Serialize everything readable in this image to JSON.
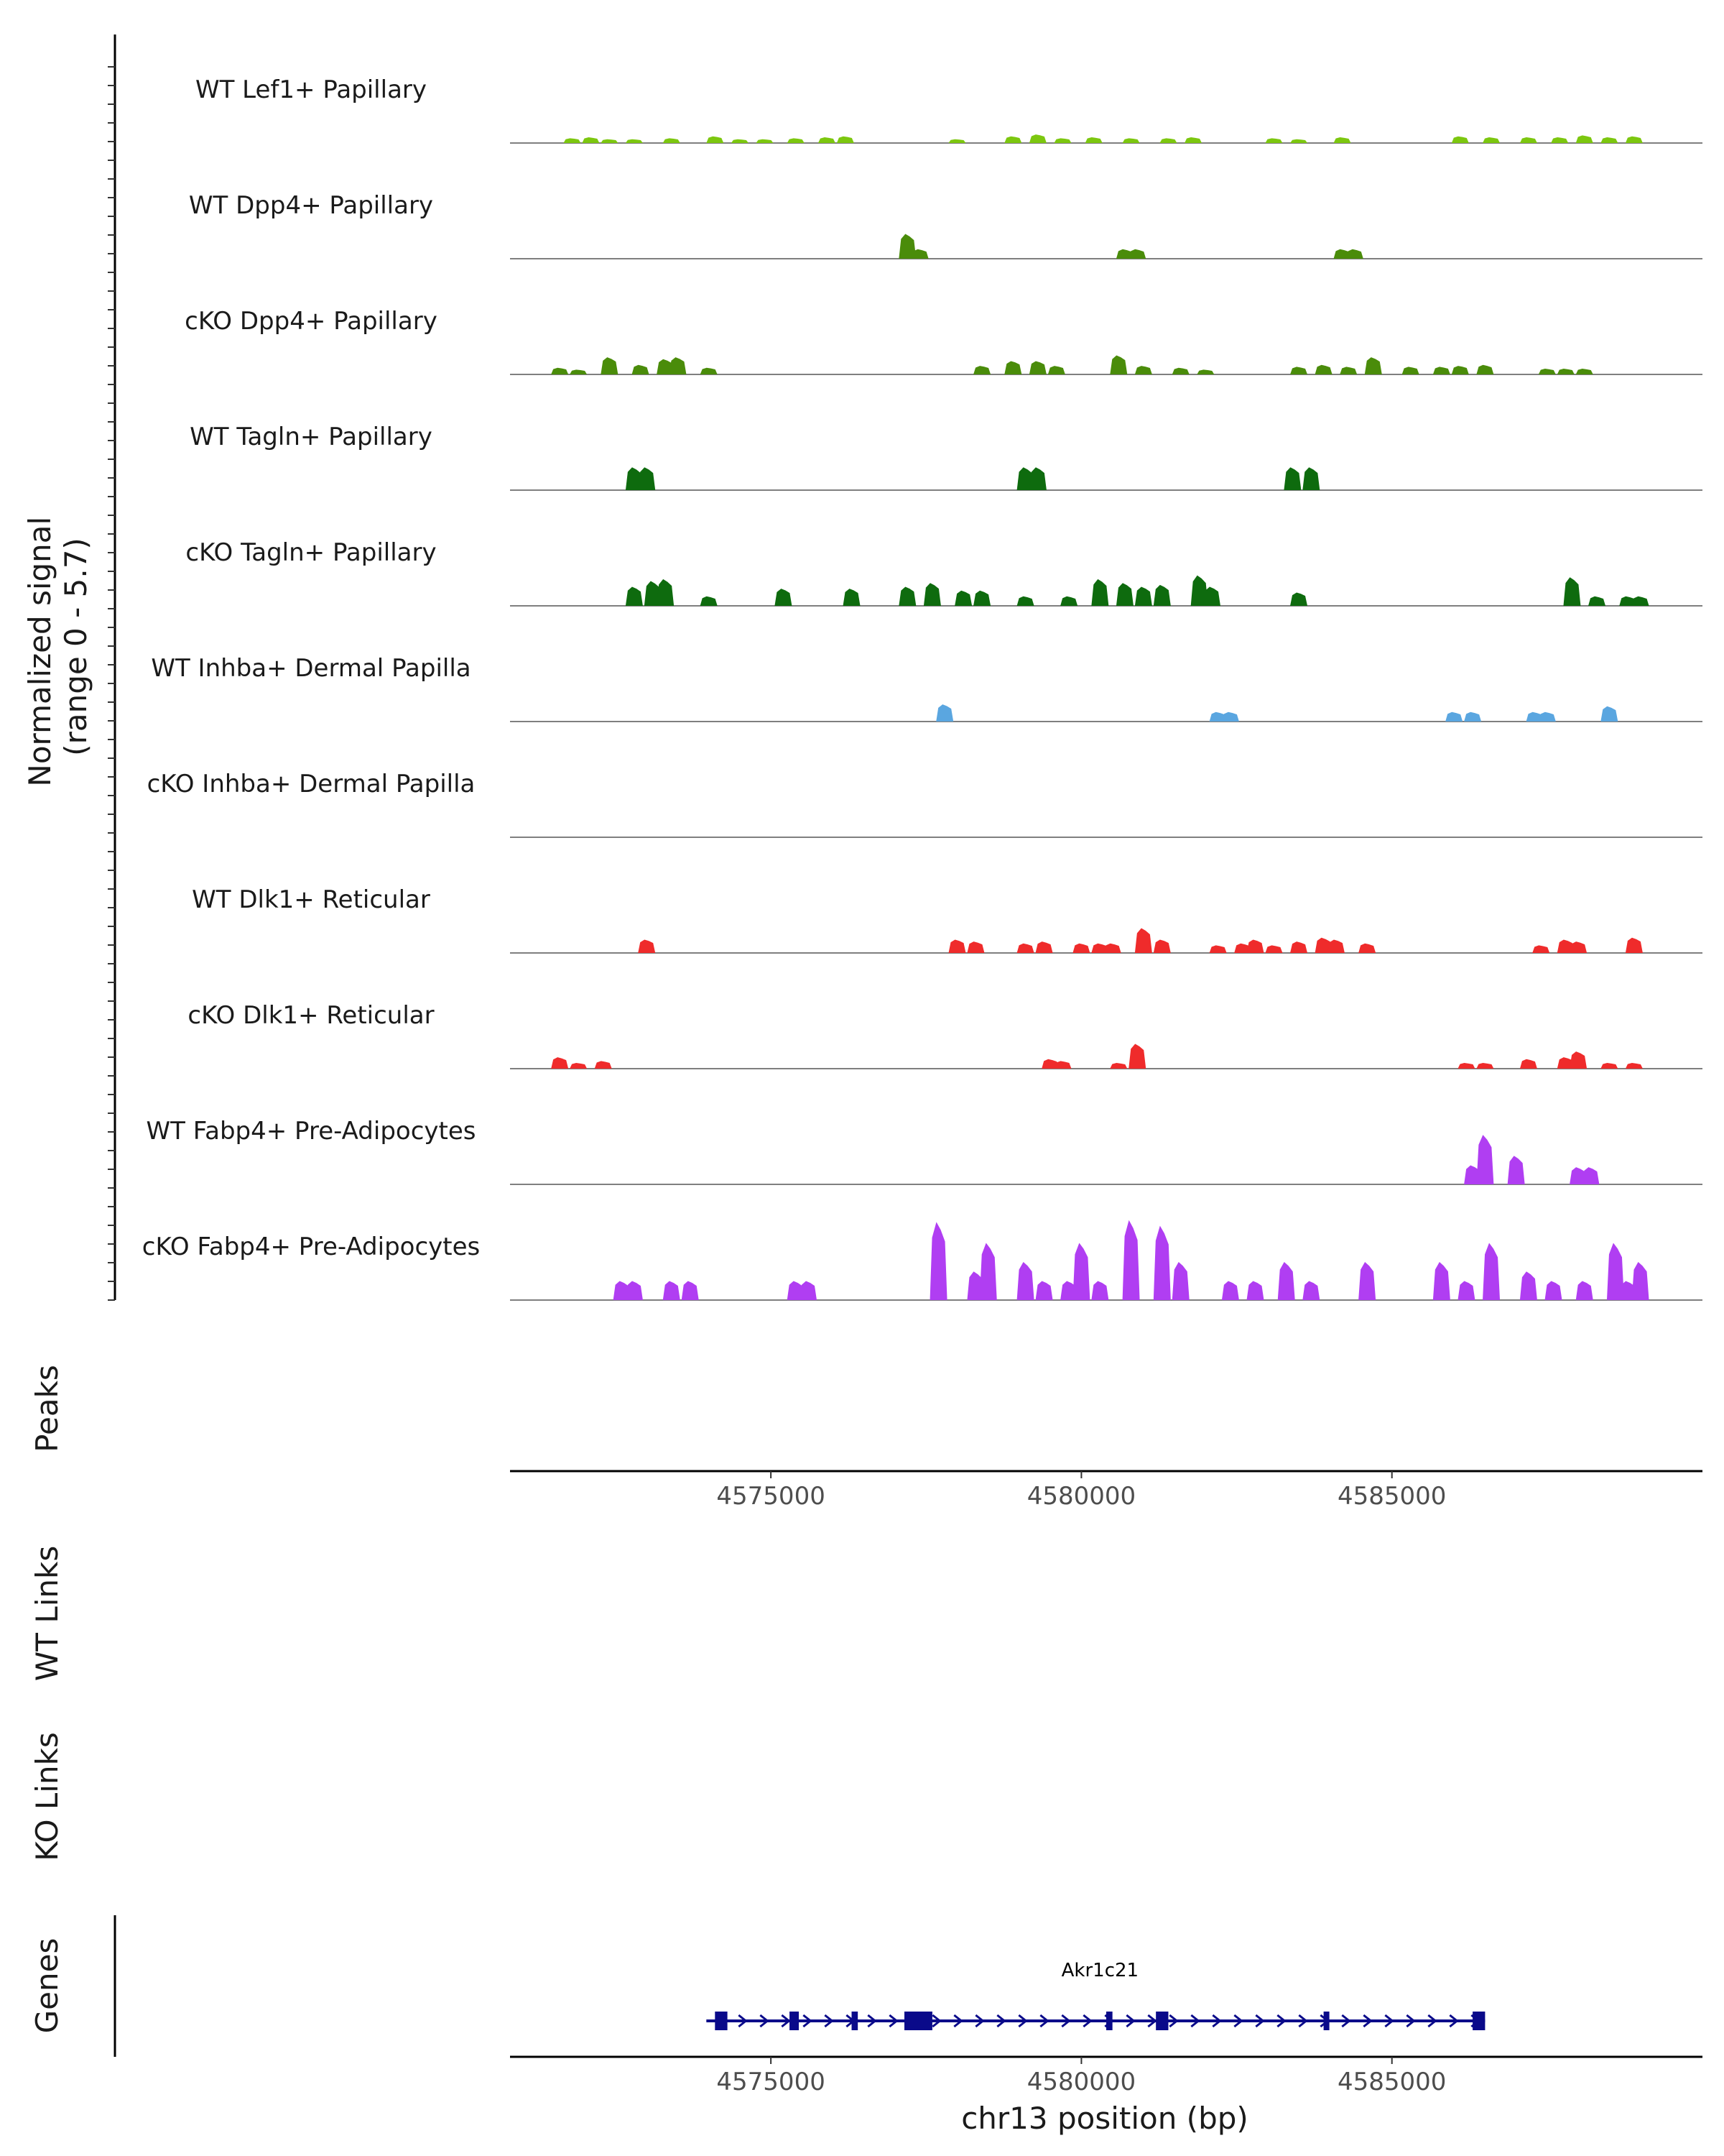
{
  "chart_data": {
    "type": "area",
    "title": "",
    "ylabel_line1": "Normalized signal",
    "ylabel_line2": "(range 0 - 5.7)",
    "ylim": [
      0,
      5.7
    ],
    "xlabel": "chr13 position (bp)",
    "xlim": [
      4570800,
      4590000
    ],
    "x_ticks": [
      4575000,
      4580000,
      4585000
    ],
    "x_tick_labels": [
      "4575000",
      "4580000",
      "4585000"
    ],
    "tracks": [
      {
        "name": "WT Lef1+ Papillary",
        "color": "#7cc70f",
        "peaks": [
          [
            4571800,
            0.25
          ],
          [
            4572100,
            0.3
          ],
          [
            4572400,
            0.2
          ],
          [
            4572800,
            0.2
          ],
          [
            4573400,
            0.25
          ],
          [
            4574100,
            0.35
          ],
          [
            4574500,
            0.2
          ],
          [
            4574900,
            0.2
          ],
          [
            4575400,
            0.25
          ],
          [
            4575900,
            0.3
          ],
          [
            4576200,
            0.35
          ],
          [
            4578000,
            0.2
          ],
          [
            4578900,
            0.35
          ],
          [
            4579300,
            0.45
          ],
          [
            4579700,
            0.25
          ],
          [
            4580200,
            0.3
          ],
          [
            4580800,
            0.25
          ],
          [
            4581400,
            0.25
          ],
          [
            4581800,
            0.3
          ],
          [
            4583100,
            0.25
          ],
          [
            4583500,
            0.2
          ],
          [
            4584200,
            0.3
          ],
          [
            4586100,
            0.35
          ],
          [
            4586600,
            0.3
          ],
          [
            4587200,
            0.3
          ],
          [
            4587700,
            0.3
          ],
          [
            4588100,
            0.4
          ],
          [
            4588500,
            0.3
          ],
          [
            4588900,
            0.35
          ]
        ]
      },
      {
        "name": "WT Dpp4+ Papillary",
        "color": "#4a8c0a",
        "peaks": [
          [
            4577200,
            1.3
          ],
          [
            4577400,
            0.5
          ],
          [
            4580700,
            0.5
          ],
          [
            4580900,
            0.5
          ],
          [
            4584200,
            0.5
          ],
          [
            4584400,
            0.5
          ]
        ]
      },
      {
        "name": "cKO Dpp4+ Papillary",
        "color": "#4a8c0a",
        "peaks": [
          [
            4571600,
            0.35
          ],
          [
            4571900,
            0.25
          ],
          [
            4572400,
            0.9
          ],
          [
            4572900,
            0.5
          ],
          [
            4573300,
            0.8
          ],
          [
            4573500,
            0.9
          ],
          [
            4574000,
            0.35
          ],
          [
            4578400,
            0.45
          ],
          [
            4578900,
            0.7
          ],
          [
            4579300,
            0.7
          ],
          [
            4579600,
            0.45
          ],
          [
            4580600,
            1.0
          ],
          [
            4581000,
            0.45
          ],
          [
            4581600,
            0.35
          ],
          [
            4582000,
            0.25
          ],
          [
            4583500,
            0.4
          ],
          [
            4583900,
            0.5
          ],
          [
            4584300,
            0.4
          ],
          [
            4584700,
            0.9
          ],
          [
            4585300,
            0.4
          ],
          [
            4585800,
            0.4
          ],
          [
            4586100,
            0.45
          ],
          [
            4586500,
            0.5
          ],
          [
            4587500,
            0.3
          ],
          [
            4587800,
            0.3
          ],
          [
            4588100,
            0.3
          ]
        ]
      },
      {
        "name": "WT Tagln+ Papillary",
        "color": "#0e6b0e",
        "peaks": [
          [
            4572800,
            1.2
          ],
          [
            4573000,
            1.2
          ],
          [
            4579100,
            1.2
          ],
          [
            4579300,
            1.2
          ],
          [
            4583400,
            1.2
          ],
          [
            4583700,
            1.2
          ]
        ]
      },
      {
        "name": "cKO Tagln+ Papillary",
        "color": "#0e6b0e",
        "peaks": [
          [
            4572800,
            1.0
          ],
          [
            4573100,
            1.3
          ],
          [
            4573300,
            1.4
          ],
          [
            4574000,
            0.5
          ],
          [
            4575200,
            0.9
          ],
          [
            4576300,
            0.9
          ],
          [
            4577200,
            1.0
          ],
          [
            4577600,
            1.2
          ],
          [
            4578100,
            0.8
          ],
          [
            4578400,
            0.8
          ],
          [
            4579100,
            0.5
          ],
          [
            4579800,
            0.5
          ],
          [
            4580300,
            1.4
          ],
          [
            4580700,
            1.2
          ],
          [
            4581000,
            1.0
          ],
          [
            4581300,
            1.1
          ],
          [
            4581900,
            1.6
          ],
          [
            4582100,
            1.0
          ],
          [
            4583500,
            0.7
          ],
          [
            4587900,
            1.5
          ],
          [
            4588300,
            0.5
          ],
          [
            4588800,
            0.5
          ],
          [
            4589000,
            0.5
          ]
        ]
      },
      {
        "name": "WT Inhba+ Dermal Papilla",
        "color": "#5aa6e0",
        "peaks": [
          [
            4577800,
            0.9
          ],
          [
            4582200,
            0.5
          ],
          [
            4582400,
            0.5
          ],
          [
            4586000,
            0.5
          ],
          [
            4586300,
            0.5
          ],
          [
            4587300,
            0.5
          ],
          [
            4587500,
            0.5
          ],
          [
            4588500,
            0.8
          ]
        ]
      },
      {
        "name": "cKO Inhba+ Dermal Papilla",
        "color": "#5aa6e0",
        "peaks": []
      },
      {
        "name": "WT Dlk1+ Reticular",
        "color": "#ef2b2b",
        "peaks": [
          [
            4573000,
            0.7
          ],
          [
            4578000,
            0.7
          ],
          [
            4578300,
            0.6
          ],
          [
            4579100,
            0.5
          ],
          [
            4579400,
            0.6
          ],
          [
            4580000,
            0.5
          ],
          [
            4580300,
            0.5
          ],
          [
            4580500,
            0.5
          ],
          [
            4581000,
            1.3
          ],
          [
            4581300,
            0.7
          ],
          [
            4582200,
            0.4
          ],
          [
            4582600,
            0.5
          ],
          [
            4582800,
            0.7
          ],
          [
            4583100,
            0.4
          ],
          [
            4583500,
            0.6
          ],
          [
            4583900,
            0.8
          ],
          [
            4584100,
            0.7
          ],
          [
            4584600,
            0.5
          ],
          [
            4587400,
            0.4
          ],
          [
            4587800,
            0.7
          ],
          [
            4588000,
            0.6
          ],
          [
            4588900,
            0.8
          ]
        ]
      },
      {
        "name": "cKO Dlk1+ Reticular",
        "color": "#ef2b2b",
        "peaks": [
          [
            4571600,
            0.6
          ],
          [
            4571900,
            0.3
          ],
          [
            4572300,
            0.4
          ],
          [
            4579500,
            0.5
          ],
          [
            4579700,
            0.4
          ],
          [
            4580600,
            0.3
          ],
          [
            4580900,
            1.3
          ],
          [
            4586200,
            0.3
          ],
          [
            4586500,
            0.3
          ],
          [
            4587200,
            0.5
          ],
          [
            4587800,
            0.6
          ],
          [
            4588000,
            0.9
          ],
          [
            4588500,
            0.3
          ],
          [
            4588900,
            0.3
          ]
        ]
      },
      {
        "name": "WT Fabp4+ Pre-Adipocytes",
        "color": "#b03ef2",
        "peaks": [
          [
            4586300,
            1.0
          ],
          [
            4586500,
            2.6
          ],
          [
            4587000,
            1.5
          ],
          [
            4588000,
            0.9
          ],
          [
            4588200,
            0.9
          ]
        ]
      },
      {
        "name": "cKO Fabp4+ Pre-Adipocytes",
        "color": "#b03ef2",
        "peaks": [
          [
            4572600,
            1.0
          ],
          [
            4572800,
            1.0
          ],
          [
            4573400,
            1.0
          ],
          [
            4573700,
            1.0
          ],
          [
            4575400,
            1.0
          ],
          [
            4575600,
            1.0
          ],
          [
            4577700,
            4.1
          ],
          [
            4578300,
            1.5
          ],
          [
            4578500,
            3.0
          ],
          [
            4579100,
            2.0
          ],
          [
            4579400,
            1.0
          ],
          [
            4579800,
            1.0
          ],
          [
            4580000,
            3.0
          ],
          [
            4580300,
            1.0
          ],
          [
            4580800,
            4.2
          ],
          [
            4581300,
            3.9
          ],
          [
            4581600,
            2.0
          ],
          [
            4582400,
            1.0
          ],
          [
            4582800,
            1.0
          ],
          [
            4583300,
            2.0
          ],
          [
            4583700,
            1.0
          ],
          [
            4584600,
            2.0
          ],
          [
            4585800,
            2.0
          ],
          [
            4586200,
            1.0
          ],
          [
            4586600,
            3.0
          ],
          [
            4587200,
            1.5
          ],
          [
            4587600,
            1.0
          ],
          [
            4588100,
            1.0
          ],
          [
            4588600,
            3.0
          ],
          [
            4588800,
            1.0
          ],
          [
            4589000,
            2.0
          ]
        ]
      }
    ],
    "panels": {
      "peaks_label": "Peaks",
      "wt_links_label": "WT Links",
      "ko_links_label": "KO Links",
      "genes_label": "Genes"
    },
    "gene": {
      "name": "Akr1c21",
      "strand": "+",
      "color": "#0a0a8a",
      "start": 4574100,
      "end": 4586500,
      "exons": [
        [
          4574100,
          4574300
        ],
        [
          4575300,
          4575450
        ],
        [
          4576300,
          4576400
        ],
        [
          4577150,
          4577600
        ],
        [
          4580400,
          4580500
        ],
        [
          4581200,
          4581400
        ],
        [
          4583900,
          4583980
        ],
        [
          4586300,
          4586500
        ]
      ]
    }
  }
}
